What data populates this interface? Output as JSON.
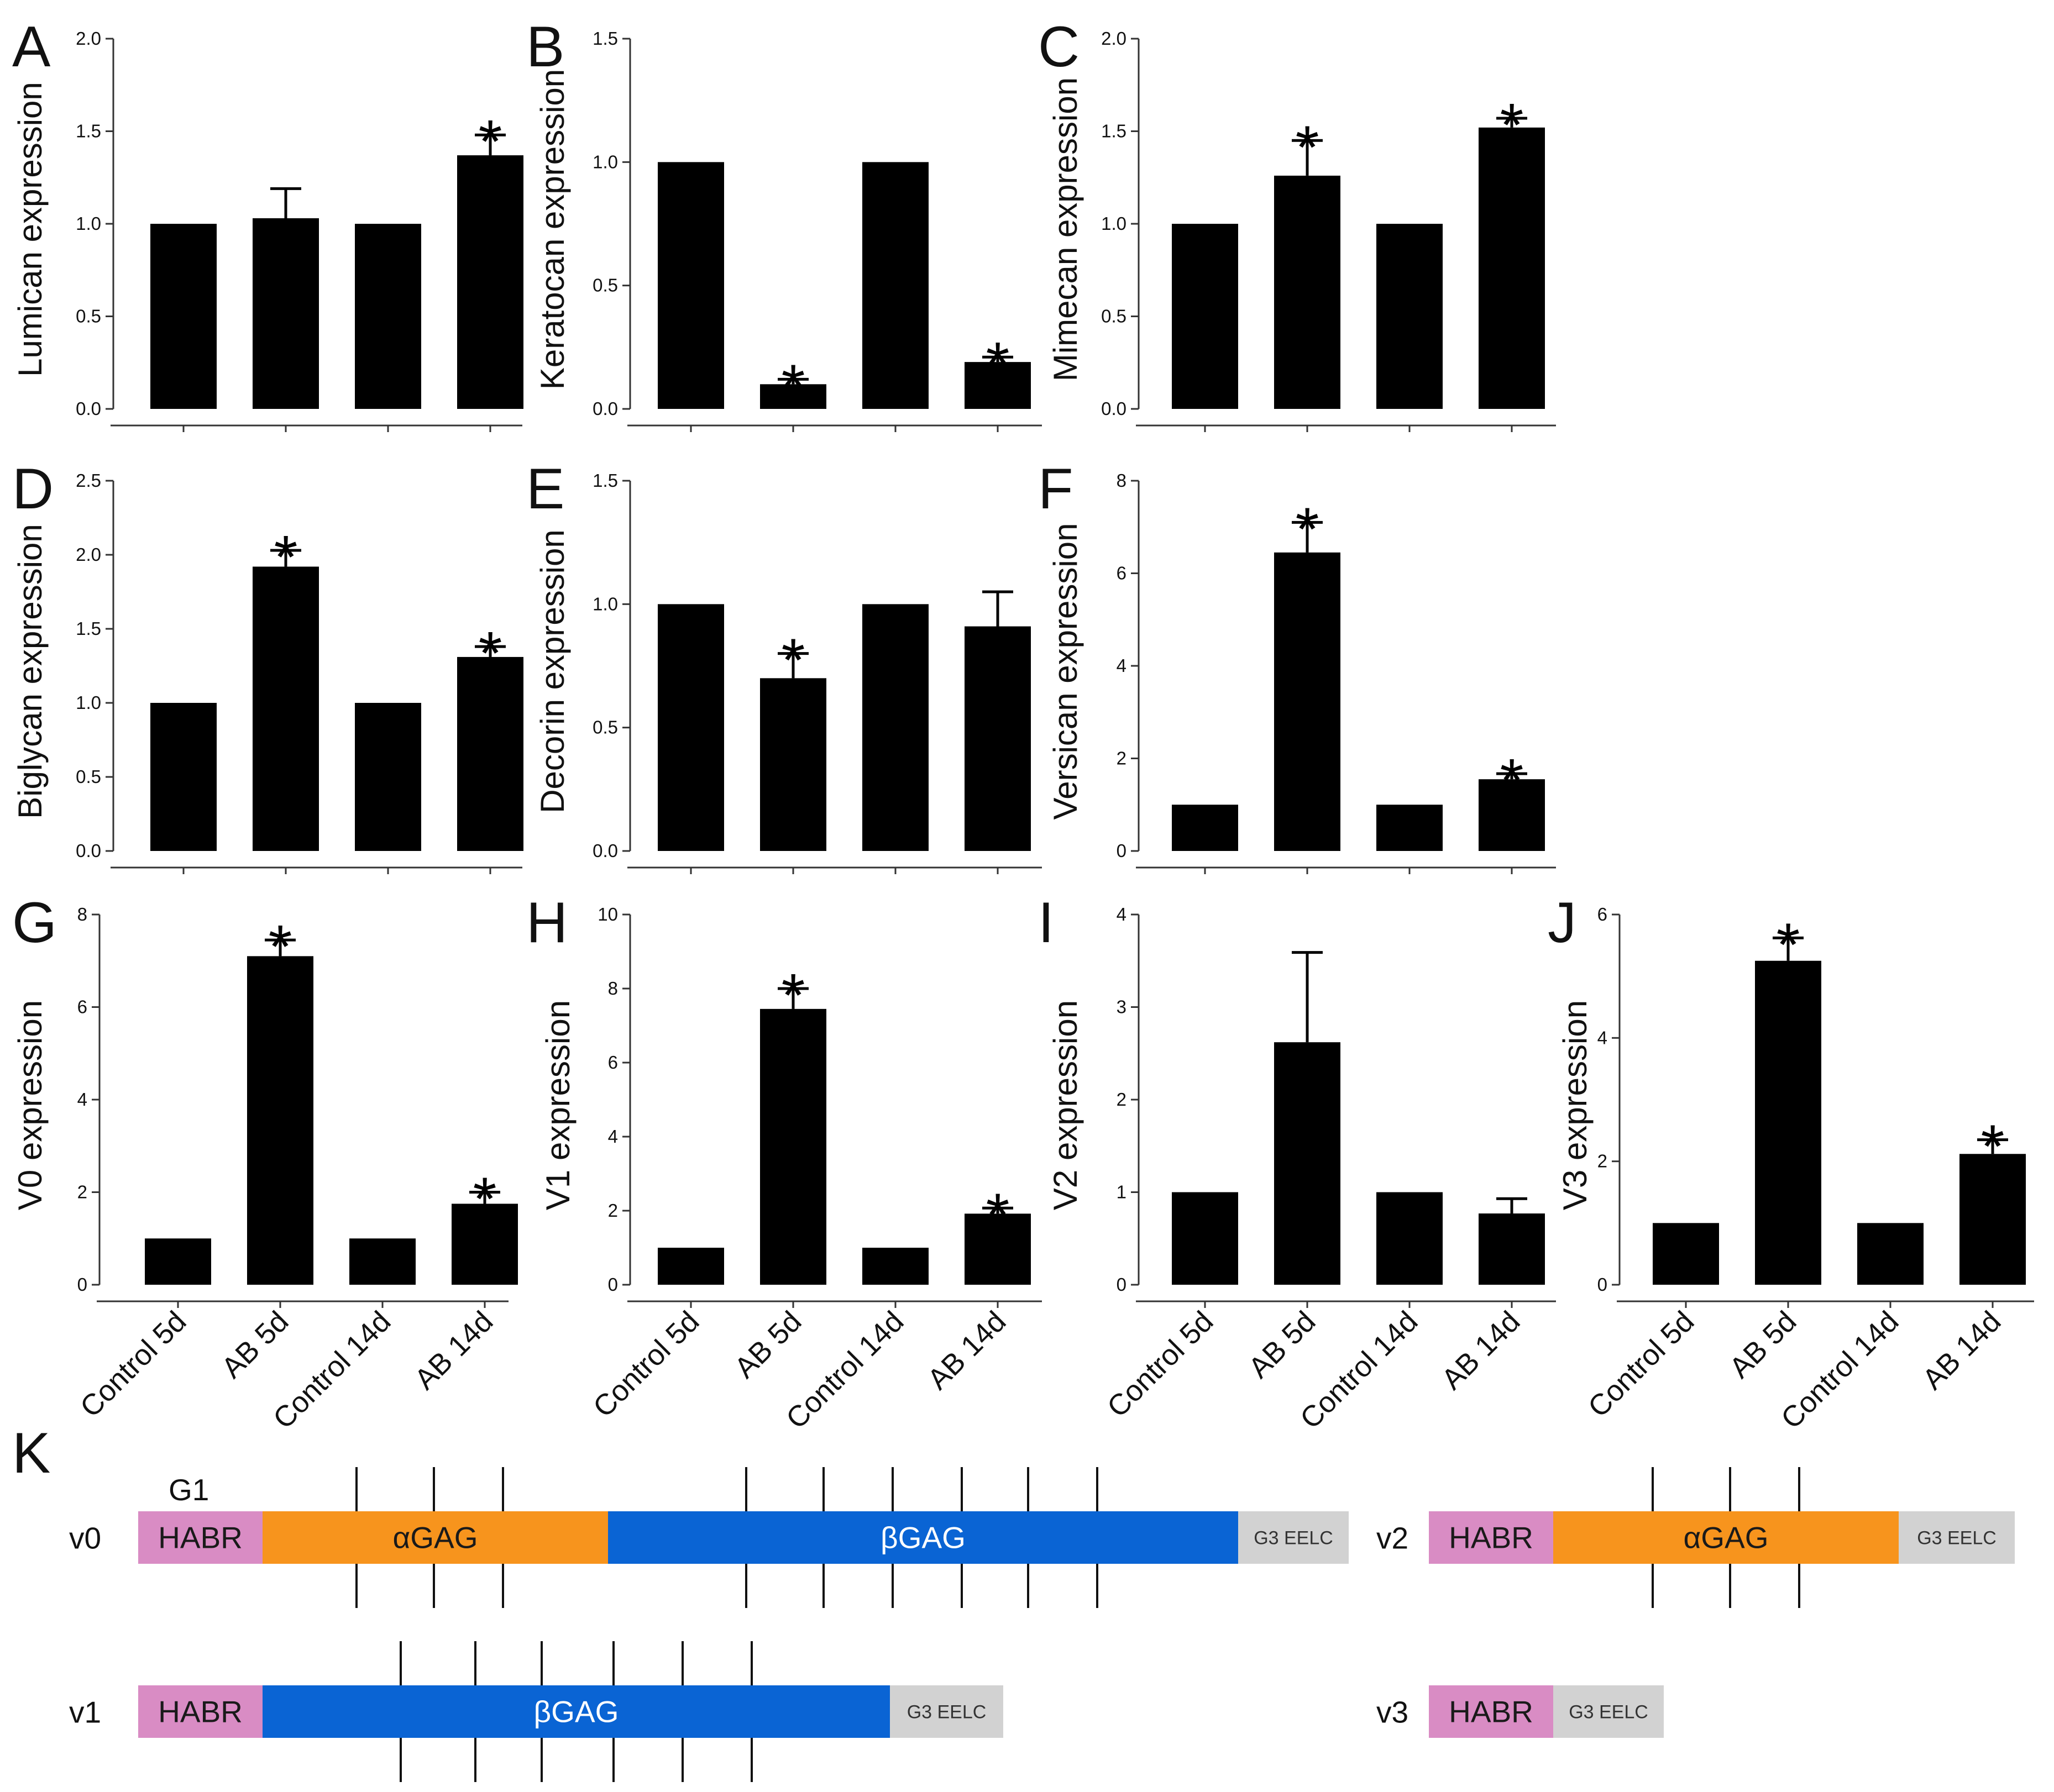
{
  "chart_data": [
    {
      "panel": "A",
      "type": "bar",
      "ylabel": "Lumican expression",
      "ylim": [
        0,
        2.0
      ],
      "yticks": [
        "0.0",
        "0.5",
        "1.0",
        "1.5",
        "2.0"
      ],
      "categories": [
        "Control 5d",
        "AB 5d",
        "Control 14d",
        "AB 14d"
      ],
      "category_labels_visible": false,
      "values": [
        1.0,
        1.03,
        1.0,
        1.37
      ],
      "errors": [
        0,
        0.16,
        0,
        0.11
      ],
      "significant": [
        false,
        false,
        false,
        true
      ]
    },
    {
      "panel": "B",
      "type": "bar",
      "ylabel": "Keratocan expression",
      "ylim": [
        0,
        1.5
      ],
      "yticks": [
        "0.0",
        "0.5",
        "1.0",
        "1.5"
      ],
      "categories": [
        "Control 5d",
        "AB 5d",
        "Control 14d",
        "AB 14d"
      ],
      "category_labels_visible": false,
      "values": [
        1.0,
        0.1,
        1.0,
        0.19
      ],
      "errors": [
        0,
        0.02,
        0,
        0.02
      ],
      "significant": [
        false,
        true,
        false,
        true
      ]
    },
    {
      "panel": "C",
      "type": "bar",
      "ylabel": "Mimecan expression",
      "ylim": [
        0,
        2.0
      ],
      "yticks": [
        "0.0",
        "0.5",
        "1.0",
        "1.5",
        "2.0"
      ],
      "categories": [
        "Control 5d",
        "AB 5d",
        "Control 14d",
        "AB 14d"
      ],
      "category_labels_visible": false,
      "values": [
        1.0,
        1.26,
        1.0,
        1.52
      ],
      "errors": [
        0,
        0.19,
        0,
        0.05
      ],
      "significant": [
        false,
        true,
        false,
        true
      ]
    },
    {
      "panel": "D",
      "type": "bar",
      "ylabel": "Biglycan expression",
      "ylim": [
        0,
        2.5
      ],
      "yticks": [
        "0.0",
        "0.5",
        "1.0",
        "1.5",
        "2.0",
        "2.5"
      ],
      "categories": [
        "Control 5d",
        "AB 5d",
        "Control 14d",
        "AB 14d"
      ],
      "category_labels_visible": false,
      "values": [
        1.0,
        1.92,
        1.0,
        1.31
      ],
      "errors": [
        0,
        0.11,
        0,
        0.07
      ],
      "significant": [
        false,
        true,
        false,
        true
      ]
    },
    {
      "panel": "E",
      "type": "bar",
      "ylabel": "Decorin expression",
      "ylim": [
        0,
        1.5
      ],
      "yticks": [
        "0.0",
        "0.5",
        "1.0",
        "1.5"
      ],
      "categories": [
        "Control 5d",
        "AB 5d",
        "Control 14d",
        "AB 14d"
      ],
      "category_labels_visible": false,
      "values": [
        1.0,
        0.7,
        1.0,
        0.91
      ],
      "errors": [
        0,
        0.1,
        0,
        0.14
      ],
      "significant": [
        false,
        true,
        false,
        false
      ]
    },
    {
      "panel": "F",
      "type": "bar",
      "ylabel": "Versican expression",
      "ylim": [
        0,
        8
      ],
      "yticks": [
        "0",
        "2",
        "4",
        "6",
        "8"
      ],
      "categories": [
        "Control 5d",
        "AB 5d",
        "Control 14d",
        "AB 14d"
      ],
      "category_labels_visible": false,
      "values": [
        1.0,
        6.45,
        1.0,
        1.55
      ],
      "errors": [
        0,
        0.65,
        0,
        0.12
      ],
      "significant": [
        false,
        true,
        false,
        true
      ]
    },
    {
      "panel": "G",
      "type": "bar",
      "ylabel": "V0 expression",
      "ylim": [
        0,
        8
      ],
      "yticks": [
        "0",
        "2",
        "4",
        "6",
        "8"
      ],
      "categories": [
        "Control 5d",
        "AB 5d",
        "Control 14d",
        "AB 14d"
      ],
      "category_labels_visible": true,
      "values": [
        1.0,
        7.1,
        1.0,
        1.75
      ],
      "errors": [
        0,
        0.35,
        0,
        0.25
      ],
      "significant": [
        false,
        true,
        false,
        true
      ]
    },
    {
      "panel": "H",
      "type": "bar",
      "ylabel": "V1 expression",
      "ylim": [
        0,
        10
      ],
      "yticks": [
        "0",
        "2",
        "4",
        "6",
        "8",
        "10"
      ],
      "categories": [
        "Control 5d",
        "AB 5d",
        "Control 14d",
        "AB 14d"
      ],
      "category_labels_visible": true,
      "values": [
        1.0,
        7.45,
        1.0,
        1.92
      ],
      "errors": [
        0,
        0.55,
        0,
        0.15
      ],
      "significant": [
        false,
        true,
        false,
        true
      ]
    },
    {
      "panel": "I",
      "type": "bar",
      "ylabel": "V2 expression",
      "ylim": [
        0,
        4
      ],
      "yticks": [
        "0",
        "1",
        "2",
        "3",
        "4"
      ],
      "categories": [
        "Control 5d",
        "AB 5d",
        "Control 14d",
        "AB 14d"
      ],
      "category_labels_visible": true,
      "values": [
        1.0,
        2.62,
        1.0,
        0.77
      ],
      "errors": [
        0,
        0.97,
        0,
        0.16
      ],
      "significant": [
        false,
        false,
        false,
        false
      ]
    },
    {
      "panel": "J",
      "type": "bar",
      "ylabel": "V3 expression",
      "ylim": [
        0,
        6
      ],
      "yticks": [
        "0",
        "2",
        "4",
        "6"
      ],
      "categories": [
        "Control 5d",
        "AB 5d",
        "Control 14d",
        "AB 14d"
      ],
      "category_labels_visible": true,
      "values": [
        1.0,
        5.25,
        1.0,
        2.12
      ],
      "errors": [
        0,
        0.37,
        0,
        0.23
      ],
      "significant": [
        false,
        true,
        false,
        true
      ]
    }
  ],
  "significance_marker": "*",
  "diagram": {
    "panel": "K",
    "g1_label": "G1",
    "colors": {
      "HABR": "#d98cc4",
      "alphaGAG": "#f7941d",
      "betaGAG": "#0a64d4",
      "EELC": "#d2d2d2"
    },
    "variants": [
      {
        "name": "v0",
        "segments": [
          {
            "label": "HABR",
            "kind": "HABR"
          },
          {
            "label": "αGAG",
            "kind": "alphaGAG"
          },
          {
            "label": "βGAG",
            "kind": "betaGAG"
          },
          {
            "label": "G3 EELC",
            "kind": "EELC"
          }
        ]
      },
      {
        "name": "v1",
        "segments": [
          {
            "label": "HABR",
            "kind": "HABR"
          },
          {
            "label": "βGAG",
            "kind": "betaGAG"
          },
          {
            "label": "G3 EELC",
            "kind": "EELC"
          }
        ]
      },
      {
        "name": "v2",
        "segments": [
          {
            "label": "HABR",
            "kind": "HABR"
          },
          {
            "label": "αGAG",
            "kind": "alphaGAG"
          },
          {
            "label": "G3 EELC",
            "kind": "EELC"
          }
        ]
      },
      {
        "name": "v3",
        "segments": [
          {
            "label": "HABR",
            "kind": "HABR"
          },
          {
            "label": "G3 EELC",
            "kind": "EELC"
          }
        ]
      }
    ]
  }
}
